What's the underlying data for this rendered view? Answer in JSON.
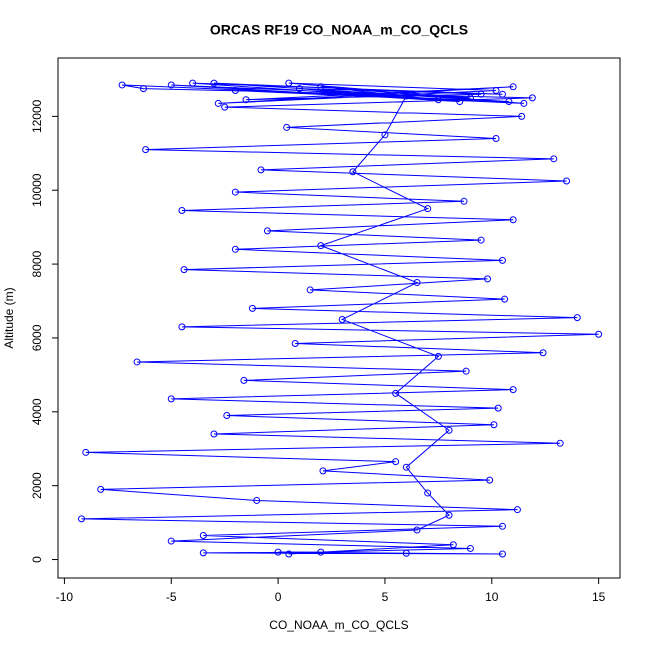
{
  "chart_data": {
    "type": "line",
    "title": "ORCAS RF19 CO_NOAA_m_CO_QCLS",
    "x_label": "CO_NOAA_m_CO_QCLS",
    "y_label": "Altitude (m)",
    "color": "#0000ff",
    "markers": true,
    "grid": false,
    "xlim": [
      -10.3,
      16.0
    ],
    "ylim": [
      -500,
      13580
    ],
    "xticks": [
      -10,
      -5,
      0,
      5,
      10,
      15
    ],
    "yticks": [
      0,
      2000,
      4000,
      6000,
      8000,
      10000,
      12000
    ],
    "x": [
      0.5,
      8.2,
      -3.5,
      10.5,
      -9.2,
      11.2,
      -1.0,
      -8.3,
      9.9,
      2.1,
      5.5,
      -9.0,
      13.2,
      -3.0,
      10.1,
      -2.4,
      10.3,
      -5.0,
      11.0,
      -1.6,
      8.8,
      -6.6,
      12.4,
      0.8,
      15.0,
      -4.5,
      14.0,
      -1.2,
      10.6,
      1.5,
      9.8,
      -4.4,
      10.5,
      -2.0,
      9.5,
      -0.5,
      11.0,
      -4.5,
      8.7,
      -2.0,
      13.5,
      -0.8,
      12.9,
      -6.2,
      10.2,
      0.4,
      11.4,
      -2.5,
      11.9,
      -6.3,
      -7.3,
      10.8,
      -3.0,
      9.5,
      -1.5,
      11.0,
      -2.8,
      10.2,
      0.5,
      9.0,
      -5.0,
      8.5,
      1.0,
      10.5,
      -4.0,
      7.5,
      2.0,
      11.5,
      -2.0,
      6.0,
      5.0,
      3.5,
      7.0,
      2.0,
      6.5,
      3.0,
      7.5,
      5.5,
      8.0,
      6.0,
      7.0,
      8.0,
      6.5,
      -5.0,
      9.0,
      2.0,
      -3.5,
      10.5,
      0.0,
      6.0
    ],
    "values": [
      150,
      400,
      650,
      900,
      1100,
      1350,
      1600,
      1900,
      2150,
      2400,
      2650,
      2900,
      3150,
      3400,
      3650,
      3900,
      4100,
      4350,
      4600,
      4850,
      5100,
      5350,
      5600,
      5850,
      6100,
      6300,
      6550,
      6800,
      7050,
      7300,
      7600,
      7850,
      8100,
      8400,
      8650,
      8900,
      9200,
      9450,
      9700,
      9950,
      10250,
      10550,
      10850,
      11100,
      11400,
      11700,
      12000,
      12250,
      12500,
      12750,
      12850,
      12400,
      12900,
      12600,
      12450,
      12800,
      12350,
      12700,
      12900,
      12500,
      12850,
      12400,
      12750,
      12600,
      12900,
      12450,
      12800,
      12350,
      12700,
      12550,
      11500,
      10500,
      9500,
      8500,
      7500,
      6500,
      5500,
      4500,
      3500,
      2500,
      1800,
      1200,
      800,
      500,
      300,
      200,
      180,
      150,
      200,
      170
    ]
  }
}
